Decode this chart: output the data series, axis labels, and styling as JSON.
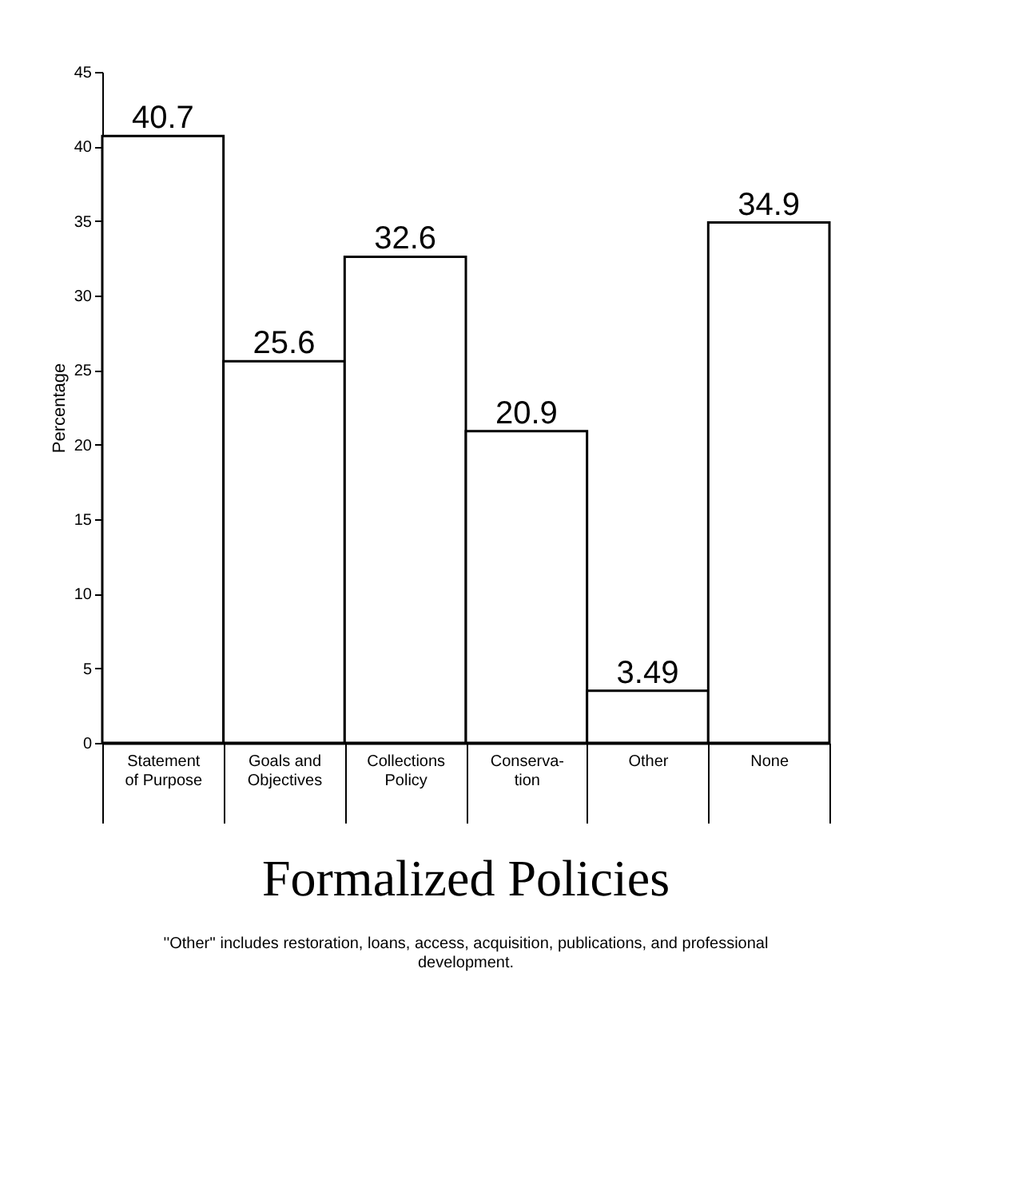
{
  "chart_data": {
    "type": "bar",
    "title": "Formalized Policies",
    "categories": [
      "Statement\nof Purpose",
      "Goals and\nObjectives",
      "Collections\nPolicy",
      "Conserva-\ntion",
      "Other",
      "None"
    ],
    "values": [
      40.7,
      25.6,
      32.6,
      20.9,
      3.49,
      34.9
    ],
    "color": "#ffffff",
    "ylabel": "Percentage",
    "ylim": [
      0,
      45
    ],
    "yticks": [
      0,
      5,
      10,
      15,
      20,
      25,
      30,
      35,
      40,
      45
    ],
    "grid": false,
    "data_labels": true,
    "annotations": [
      "''Other'' includes restoration, loans, access, acquisition, publications, and professional development."
    ]
  }
}
